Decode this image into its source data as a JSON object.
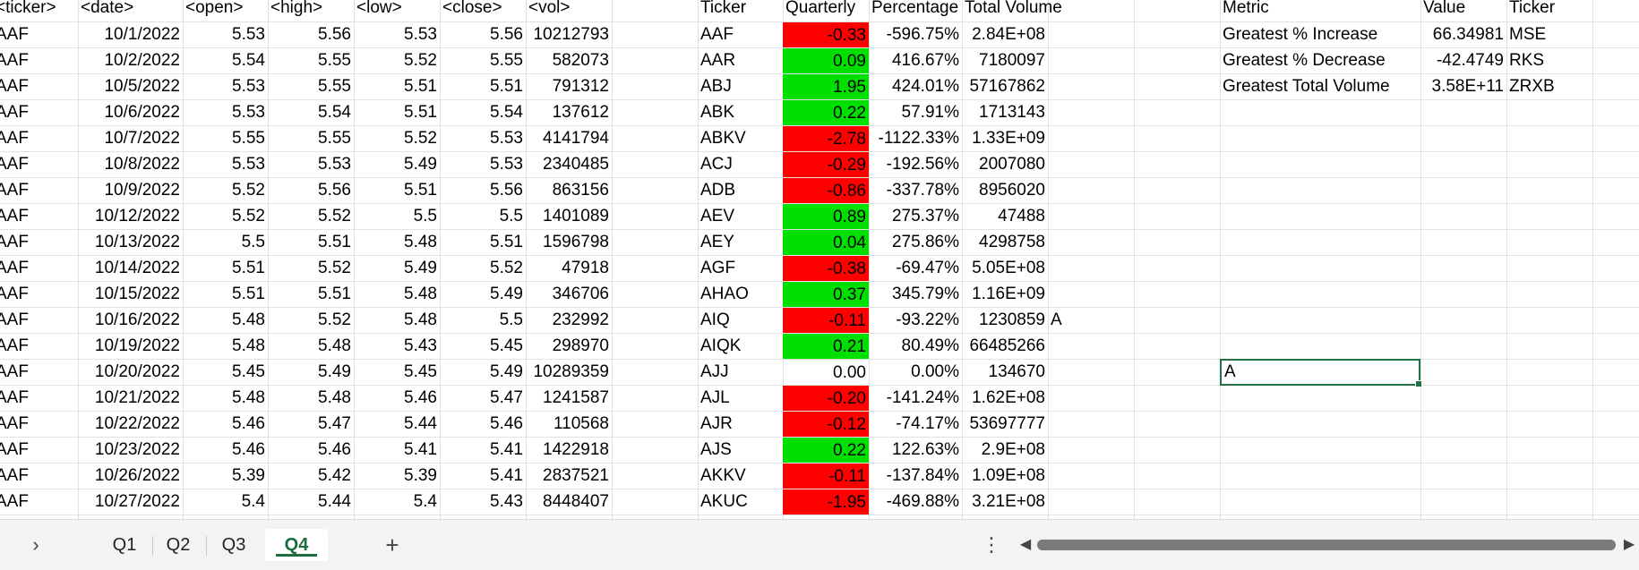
{
  "raw_table": {
    "headers": [
      "<ticker>",
      "<date>",
      "<open>",
      "<high>",
      "<low>",
      "<close>",
      "<vol>"
    ],
    "rows": [
      [
        "AAF",
        "10/1/2022",
        "5.53",
        "5.56",
        "5.53",
        "5.56",
        "10212793"
      ],
      [
        "AAF",
        "10/2/2022",
        "5.54",
        "5.55",
        "5.52",
        "5.55",
        "582073"
      ],
      [
        "AAF",
        "10/5/2022",
        "5.53",
        "5.55",
        "5.51",
        "5.51",
        "791312"
      ],
      [
        "AAF",
        "10/6/2022",
        "5.53",
        "5.54",
        "5.51",
        "5.54",
        "137612"
      ],
      [
        "AAF",
        "10/7/2022",
        "5.55",
        "5.55",
        "5.52",
        "5.53",
        "4141794"
      ],
      [
        "AAF",
        "10/8/2022",
        "5.53",
        "5.53",
        "5.49",
        "5.53",
        "2340485"
      ],
      [
        "AAF",
        "10/9/2022",
        "5.52",
        "5.56",
        "5.51",
        "5.56",
        "863156"
      ],
      [
        "AAF",
        "10/12/2022",
        "5.52",
        "5.52",
        "5.5",
        "5.5",
        "1401089"
      ],
      [
        "AAF",
        "10/13/2022",
        "5.5",
        "5.51",
        "5.48",
        "5.51",
        "1596798"
      ],
      [
        "AAF",
        "10/14/2022",
        "5.51",
        "5.52",
        "5.49",
        "5.52",
        "47918"
      ],
      [
        "AAF",
        "10/15/2022",
        "5.51",
        "5.51",
        "5.48",
        "5.49",
        "346706"
      ],
      [
        "AAF",
        "10/16/2022",
        "5.48",
        "5.52",
        "5.48",
        "5.5",
        "232992"
      ],
      [
        "AAF",
        "10/19/2022",
        "5.48",
        "5.48",
        "5.43",
        "5.45",
        "298970"
      ],
      [
        "AAF",
        "10/20/2022",
        "5.45",
        "5.49",
        "5.45",
        "5.49",
        "10289359"
      ],
      [
        "AAF",
        "10/21/2022",
        "5.48",
        "5.48",
        "5.46",
        "5.47",
        "1241587"
      ],
      [
        "AAF",
        "10/22/2022",
        "5.46",
        "5.47",
        "5.44",
        "5.46",
        "110568"
      ],
      [
        "AAF",
        "10/23/2022",
        "5.46",
        "5.46",
        "5.41",
        "5.41",
        "1422918"
      ],
      [
        "AAF",
        "10/26/2022",
        "5.39",
        "5.42",
        "5.39",
        "5.41",
        "2837521"
      ],
      [
        "AAF",
        "10/27/2022",
        "5.4",
        "5.44",
        "5.4",
        "5.43",
        "8448407"
      ]
    ]
  },
  "summary_table": {
    "headers": [
      "Ticker",
      "Quarterly",
      "Percentage",
      "Total Volume"
    ],
    "rows": [
      {
        "ticker": "AAF",
        "quarterly": "-0.33",
        "pct": "-596.75%",
        "volume": "2.84E+08",
        "status": "negative"
      },
      {
        "ticker": "AAR",
        "quarterly": "0.09",
        "pct": "416.67%",
        "volume": "7180097",
        "status": "positive"
      },
      {
        "ticker": "ABJ",
        "quarterly": "1.95",
        "pct": "424.01%",
        "volume": "57167862",
        "status": "positive"
      },
      {
        "ticker": "ABK",
        "quarterly": "0.22",
        "pct": "57.91%",
        "volume": "1713143",
        "status": "positive"
      },
      {
        "ticker": "ABKV",
        "quarterly": "-2.78",
        "pct": "-1122.33%",
        "volume": "1.33E+09",
        "status": "negative"
      },
      {
        "ticker": "ACJ",
        "quarterly": "-0.29",
        "pct": "-192.56%",
        "volume": "2007080",
        "status": "negative"
      },
      {
        "ticker": "ADB",
        "quarterly": "-0.86",
        "pct": "-337.78%",
        "volume": "8956020",
        "status": "negative"
      },
      {
        "ticker": "AEV",
        "quarterly": "0.89",
        "pct": "275.37%",
        "volume": "47488",
        "status": "positive"
      },
      {
        "ticker": "AEY",
        "quarterly": "0.04",
        "pct": "275.86%",
        "volume": "4298758",
        "status": "positive"
      },
      {
        "ticker": "AGF",
        "quarterly": "-0.38",
        "pct": "-69.47%",
        "volume": "5.05E+08",
        "status": "negative"
      },
      {
        "ticker": "AHAO",
        "quarterly": "0.37",
        "pct": "345.79%",
        "volume": "1.16E+09",
        "status": "positive"
      },
      {
        "ticker": "AIQ",
        "quarterly": "-0.11",
        "pct": "-93.22%",
        "volume": "1230859",
        "status": "negative"
      },
      {
        "ticker": "AIQK",
        "quarterly": "0.21",
        "pct": "80.49%",
        "volume": "66485266",
        "status": "positive"
      },
      {
        "ticker": "AJJ",
        "quarterly": "0.00",
        "pct": "0.00%",
        "volume": "134670",
        "status": "neutral"
      },
      {
        "ticker": "AJL",
        "quarterly": "-0.20",
        "pct": "-141.24%",
        "volume": "1.62E+08",
        "status": "negative"
      },
      {
        "ticker": "AJR",
        "quarterly": "-0.12",
        "pct": "-74.17%",
        "volume": "53697777",
        "status": "negative"
      },
      {
        "ticker": "AJS",
        "quarterly": "0.22",
        "pct": "122.63%",
        "volume": "2.9E+08",
        "status": "positive"
      },
      {
        "ticker": "AKKV",
        "quarterly": "-0.11",
        "pct": "-137.84%",
        "volume": "1.09E+08",
        "status": "negative"
      },
      {
        "ticker": "AKUC",
        "quarterly": "-1.95",
        "pct": "-469.88%",
        "volume": "3.21E+08",
        "status": "negative"
      }
    ],
    "stray_cell_text": "A"
  },
  "metrics_table": {
    "headers": [
      "Metric",
      "Value",
      "Ticker"
    ],
    "rows": [
      {
        "metric": "Greatest % Increase",
        "value": "66.34981",
        "ticker": "MSE"
      },
      {
        "metric": "Greatest % Decrease",
        "value": "-42.4749",
        "ticker": "RKS"
      },
      {
        "metric": "Greatest Total Volume",
        "value": "3.58E+11",
        "ticker": "ZRXB"
      }
    ]
  },
  "active_cell": {
    "text": "A"
  },
  "sheet_tabs": [
    "Q1",
    "Q2",
    "Q3",
    "Q4"
  ],
  "active_tab": "Q4",
  "controls": {
    "prev_sheets_icon": "chevron-right-icon",
    "add_sheet_icon": "plus-icon",
    "more_icon": "vertical-ellipsis-icon",
    "scroll_left_icon": "triangle-left-icon",
    "scroll_right_icon": "triangle-right-icon",
    "add_sheet_glyph": "+",
    "more_glyph": "⋮",
    "prev_glyph": "›",
    "left_glyph": "◀",
    "right_glyph": "▶"
  },
  "colors": {
    "negative": "#ff0000",
    "positive": "#00e000",
    "selection": "#217346",
    "active_tab": "#1e6b3d"
  }
}
